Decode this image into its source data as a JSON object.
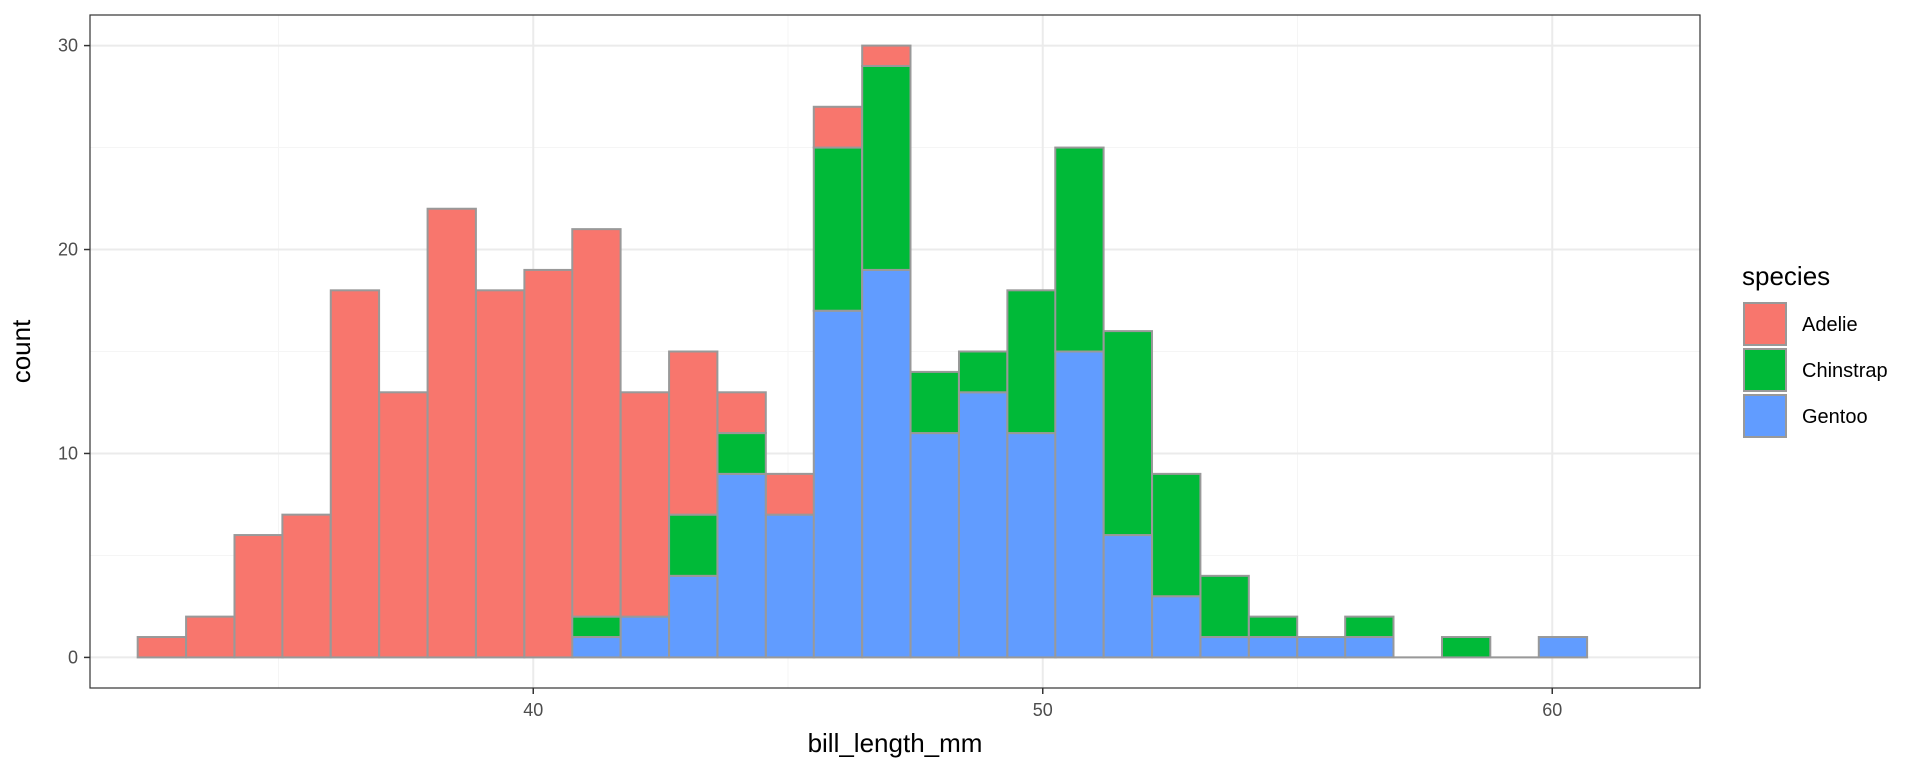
{
  "chart_data": {
    "type": "bar",
    "subtype": "stacked-histogram",
    "xlabel": "bill_length_mm",
    "ylabel": "count",
    "xlim": [
      31.3,
      62.9
    ],
    "ylim": [
      -1.5,
      31.5
    ],
    "x_ticks": [
      40,
      50,
      60
    ],
    "x_tick_labels": [
      "40",
      "50",
      "60"
    ],
    "y_ticks": [
      0,
      10,
      20,
      30
    ],
    "y_tick_labels": [
      "0",
      "10",
      "20",
      "30"
    ],
    "bin_width": 0.9483,
    "bin_centers": [
      32.71,
      33.66,
      34.61,
      35.55,
      36.5,
      37.45,
      38.4,
      39.35,
      40.3,
      41.24,
      42.19,
      43.14,
      44.09,
      45.04,
      45.98,
      46.93,
      47.88,
      48.83,
      49.78,
      50.72,
      51.67,
      52.62,
      53.57,
      54.52,
      55.47,
      56.41,
      57.36,
      58.31,
      59.26,
      60.21
    ],
    "series": [
      {
        "name": "Gentoo",
        "values": [
          0,
          0,
          0,
          0,
          0,
          0,
          0,
          0,
          0,
          1,
          2,
          4,
          9,
          7,
          17,
          19,
          11,
          13,
          11,
          15,
          6,
          3,
          1,
          1,
          1,
          1,
          0,
          0,
          0,
          1
        ]
      },
      {
        "name": "Chinstrap",
        "values": [
          0,
          0,
          0,
          0,
          0,
          0,
          0,
          0,
          0,
          1,
          0,
          3,
          2,
          0,
          8,
          10,
          3,
          2,
          7,
          10,
          10,
          6,
          3,
          1,
          0,
          1,
          0,
          1,
          0,
          0
        ]
      },
      {
        "name": "Adelie",
        "values": [
          1,
          2,
          6,
          7,
          18,
          13,
          22,
          18,
          19,
          19,
          11,
          8,
          2,
          2,
          2,
          1,
          0,
          0,
          0,
          0,
          0,
          0,
          0,
          0,
          0,
          0,
          0,
          0,
          0,
          0
        ]
      }
    ],
    "legend": {
      "title": "species",
      "entries": [
        "Adelie",
        "Chinstrap",
        "Gentoo"
      ],
      "position": "right"
    },
    "colors": {
      "Adelie": "#F8766D",
      "Chinstrap": "#00BA38",
      "Gentoo": "#619CFF",
      "bar_outline": "#999999",
      "grid_major": "#EBEBEB",
      "grid_minor": "#F5F5F5",
      "panel_border": "#333333"
    },
    "grid": true
  }
}
